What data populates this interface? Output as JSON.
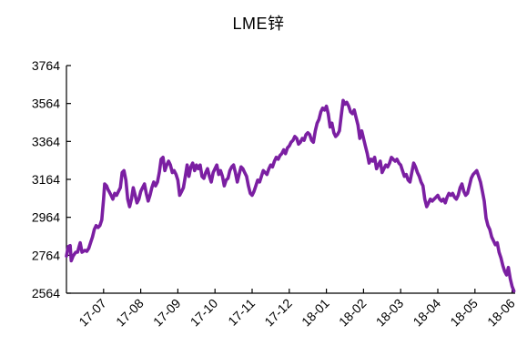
{
  "chart_data": {
    "type": "line",
    "title": "LME锌",
    "xlabel": "",
    "ylabel": "",
    "ylim": [
      2564,
      3764
    ],
    "y_ticks": [
      3764,
      3564,
      3364,
      3164,
      2964,
      2764,
      2564
    ],
    "x_ticks": [
      "17-07",
      "17-08",
      "17-09",
      "17-10",
      "17-11",
      "17-12",
      "18-01",
      "18-02",
      "18-03",
      "18-04",
      "18-05",
      "18-06"
    ],
    "grid": false,
    "legend": "none",
    "series": [
      {
        "color": "#7b1fa2",
        "x": [
          0.0,
          0.05,
          0.1,
          0.13,
          0.18,
          0.25,
          0.3,
          0.37,
          0.42,
          0.5,
          0.55,
          0.6,
          0.65,
          0.7,
          0.75,
          0.8,
          0.85,
          0.9,
          0.95,
          1.0,
          1.03,
          1.08,
          1.12,
          1.15,
          1.2,
          1.25,
          1.3,
          1.35,
          1.4,
          1.45,
          1.5,
          1.55,
          1.6,
          1.65,
          1.7,
          1.75,
          1.8,
          1.85,
          1.9,
          1.95,
          2.0,
          2.05,
          2.1,
          2.15,
          2.2,
          2.25,
          2.3,
          2.35,
          2.4,
          2.45,
          2.5,
          2.55,
          2.6,
          2.65,
          2.7,
          2.75,
          2.8,
          2.85,
          2.9,
          2.95,
          3.0,
          3.05,
          3.1,
          3.15,
          3.2,
          3.25,
          3.3,
          3.35,
          3.4,
          3.45,
          3.5,
          3.55,
          3.6,
          3.65,
          3.7,
          3.75,
          3.8,
          3.85,
          3.9,
          3.95,
          4.0,
          4.05,
          4.1,
          4.15,
          4.2,
          4.25,
          4.3,
          4.35,
          4.4,
          4.45,
          4.5,
          4.55,
          4.6,
          4.65,
          4.7,
          4.75,
          4.8,
          4.85,
          4.9,
          4.95,
          5.0,
          5.05,
          5.1,
          5.15,
          5.2,
          5.25,
          5.3,
          5.35,
          5.4,
          5.45,
          5.5,
          5.55,
          5.6,
          5.65,
          5.7,
          5.75,
          5.8,
          5.85,
          5.9,
          5.95,
          6.0,
          6.05,
          6.1,
          6.15,
          6.2,
          6.25,
          6.3,
          6.35,
          6.4,
          6.45,
          6.5,
          6.55,
          6.6,
          6.65,
          6.7,
          6.75,
          6.8,
          6.85,
          6.9,
          6.95,
          7.0,
          7.05,
          7.1,
          7.15,
          7.2,
          7.25,
          7.3,
          7.35,
          7.4,
          7.45,
          7.5,
          7.55,
          7.6,
          7.65,
          7.7,
          7.75,
          7.8,
          7.85,
          7.9,
          7.95,
          8.0,
          8.05,
          8.1,
          8.15,
          8.2,
          8.25,
          8.3,
          8.35,
          8.4,
          8.45,
          8.5,
          8.55,
          8.6,
          8.65,
          8.7,
          8.75,
          8.8,
          8.85,
          8.9,
          8.95,
          9.0,
          9.05,
          9.1,
          9.15,
          9.2,
          9.25,
          9.3,
          9.35,
          9.4,
          9.45,
          9.5,
          9.55,
          9.6,
          9.65,
          9.7,
          9.75,
          9.8,
          9.85,
          9.9,
          9.95,
          10.0,
          10.05,
          10.1,
          10.15,
          10.2,
          10.25,
          10.3,
          10.35,
          10.4,
          10.45,
          10.5,
          10.55,
          10.6,
          10.65,
          10.7,
          10.75,
          10.8,
          10.85,
          10.9,
          10.95,
          11.0,
          11.05,
          11.1,
          11.15,
          11.2,
          11.25,
          11.3,
          11.35,
          11.4,
          11.45,
          11.5,
          11.55,
          11.6,
          11.65,
          11.7,
          11.75,
          11.8,
          11.85,
          11.9,
          11.95,
          12.0,
          12.05
        ],
        "y": [
          2760,
          2810,
          2815,
          2735,
          2760,
          2780,
          2780,
          2830,
          2780,
          2790,
          2785,
          2800,
          2830,
          2860,
          2900,
          2920,
          2910,
          2920,
          2950,
          3060,
          3140,
          3130,
          3110,
          3100,
          3080,
          3060,
          3090,
          3080,
          3100,
          3120,
          3200,
          3210,
          3160,
          3060,
          3020,
          3060,
          3120,
          3080,
          3040,
          3060,
          3100,
          3120,
          3140,
          3090,
          3050,
          3080,
          3120,
          3150,
          3130,
          3150,
          3200,
          3270,
          3280,
          3210,
          3240,
          3260,
          3240,
          3200,
          3210,
          3190,
          3160,
          3080,
          3100,
          3120,
          3180,
          3240,
          3180,
          3230,
          3250,
          3210,
          3240,
          3220,
          3240,
          3180,
          3170,
          3200,
          3220,
          3180,
          3150,
          3200,
          3220,
          3240,
          3190,
          3210,
          3180,
          3130,
          3160,
          3170,
          3210,
          3230,
          3240,
          3200,
          3150,
          3190,
          3230,
          3220,
          3200,
          3180,
          3130,
          3090,
          3080,
          3100,
          3130,
          3160,
          3150,
          3180,
          3210,
          3200,
          3190,
          3220,
          3240,
          3230,
          3260,
          3280,
          3270,
          3290,
          3300,
          3320,
          3300,
          3330,
          3340,
          3360,
          3370,
          3390,
          3380,
          3350,
          3360,
          3380,
          3370,
          3400,
          3410,
          3400,
          3370,
          3360,
          3420,
          3460,
          3480,
          3520,
          3540,
          3530,
          3550,
          3510,
          3440,
          3460,
          3410,
          3390,
          3400,
          3420,
          3500,
          3580,
          3560,
          3570,
          3550,
          3520,
          3510,
          3530,
          3490,
          3450,
          3380,
          3420,
          3380,
          3340,
          3300,
          3250,
          3270,
          3260,
          3280,
          3220,
          3240,
          3260,
          3200,
          3220,
          3240,
          3230,
          3250,
          3280,
          3270,
          3260,
          3270,
          3250,
          3240,
          3210,
          3180,
          3190,
          3160,
          3150,
          3200,
          3250,
          3230,
          3200,
          3180,
          3150,
          3130,
          3060,
          3020,
          3040,
          3060,
          3050,
          3060,
          3070,
          3080,
          3060,
          3050,
          3060,
          3040,
          3070,
          3090,
          3080,
          3090,
          3070,
          3060,
          3080,
          3120,
          3140,
          3100,
          3080,
          3090,
          3130,
          3170,
          3190,
          3200,
          3210,
          3180,
          3150,
          3100,
          3050,
          2960,
          2920,
          2900,
          2860,
          2840,
          2820,
          2830,
          2780,
          2750,
          2710,
          2680,
          2660,
          2700,
          2640,
          2600,
          2575
        ]
      }
    ]
  }
}
